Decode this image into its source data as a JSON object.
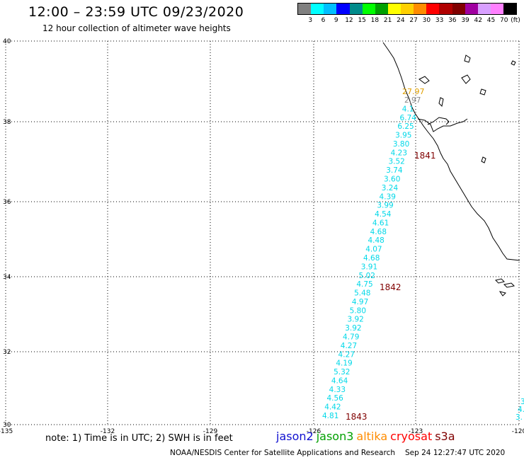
{
  "header": {
    "title": "12:00 – 23:59 UTC 09/23/2020",
    "subtitle": "12 hour collection of altimeter wave heights"
  },
  "color_scale": {
    "unit": "(ft)",
    "swatches": [
      "#808080",
      "#00ffff",
      "#00bfff",
      "#0000ff",
      "#008b8b",
      "#00ff00",
      "#00a000",
      "#ffff00",
      "#ffd000",
      "#ff8c00",
      "#ff0000",
      "#b00000",
      "#800000",
      "#a000a0",
      "#d8a0ff",
      "#ff80ff",
      "#000000"
    ],
    "labels": [
      "3",
      "6",
      "9",
      "12",
      "15",
      "18",
      "21",
      "24",
      "27",
      "30",
      "33",
      "36",
      "39",
      "42",
      "45",
      "70"
    ]
  },
  "map": {
    "lat_labels": [
      "40",
      "38",
      "36",
      "34",
      "32",
      "30"
    ],
    "lon_labels": [
      "-135",
      "-132",
      "-129",
      "-126",
      "-123",
      "-120"
    ],
    "track_color": "#00d8e8",
    "track_values": [
      "2.97",
      "4.1",
      "6.74",
      "6.25",
      "3.95",
      "3.80",
      "4.23",
      "3.52",
      "3.74",
      "3.60",
      "3.24",
      "4.39",
      "3.99",
      "4.54",
      "4.61",
      "4.68",
      "4.48",
      "4.07",
      "4.68",
      "3.91",
      "5.02",
      "4.75",
      "5.48",
      "4.97",
      "5.80",
      "3.92",
      "3.92",
      "4.79",
      "4.27",
      "4.27",
      "4.19",
      "5.32",
      "4.64",
      "4.33",
      "4.56",
      "4.42",
      "4.81"
    ],
    "highlight_value": {
      "text": "27.97",
      "color": "#e0a000"
    },
    "time_labels": [
      "1841",
      "1842",
      "1843"
    ],
    "time_label_color": "#800000",
    "edge_values": [
      "3",
      "4.",
      "3."
    ]
  },
  "footer": {
    "note": "note: 1) Time is in UTC; 2) SWH is in feet",
    "satellites": [
      {
        "name": "jason2",
        "color": "#1010d0"
      },
      {
        "name": "jason3",
        "color": "#00a000"
      },
      {
        "name": "altika",
        "color": "#ff8c00"
      },
      {
        "name": "cryosat",
        "color": "#ff0000"
      },
      {
        "name": "s3a",
        "color": "#800000"
      }
    ],
    "credit": "NOAA/NESDIS Center for Satellite Applications and Research",
    "timestamp": "Sep 24 12:27:47 UTC 2020"
  }
}
